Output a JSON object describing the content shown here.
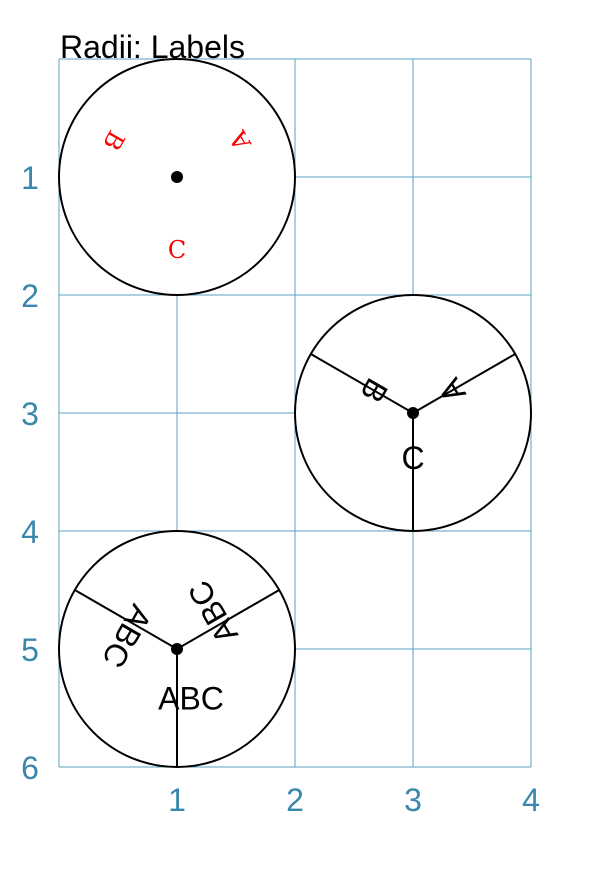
{
  "title": "Radii: Labels",
  "axes": {
    "x_ticks": [
      "1",
      "2",
      "3",
      "4"
    ],
    "y_ticks": [
      "1",
      "2",
      "3",
      "4",
      "5",
      "6"
    ],
    "x_range": [
      0,
      4
    ],
    "y_range": [
      0,
      6
    ],
    "grid": true
  },
  "colors": {
    "grid": "#5aa0c4",
    "ticks": "#3a87ad",
    "red_labels": "#ff0000",
    "stroke": "#000000"
  },
  "circles": [
    {
      "name": "circle-1",
      "center": [
        1,
        1
      ],
      "radius": 1,
      "show_radii": false,
      "label_style": "red",
      "labels": [
        {
          "text": "A",
          "angle": -30
        },
        {
          "text": "B",
          "angle": 210
        },
        {
          "text": "C",
          "angle": 90
        }
      ]
    },
    {
      "name": "circle-2",
      "center": [
        3,
        3
      ],
      "radius": 1,
      "show_radii": true,
      "label_style": "black",
      "labels": [
        {
          "text": "A",
          "angle": -30
        },
        {
          "text": "B",
          "angle": 210
        },
        {
          "text": "C",
          "angle": 90
        }
      ]
    },
    {
      "name": "circle-3",
      "center": [
        1,
        5
      ],
      "radius": 1,
      "show_radii": true,
      "label_style": "black",
      "labels": [
        {
          "text": "ABC",
          "angle": -30
        },
        {
          "text": "ABC",
          "angle": 210
        },
        {
          "text": "ABC",
          "angle": 90
        }
      ]
    }
  ]
}
